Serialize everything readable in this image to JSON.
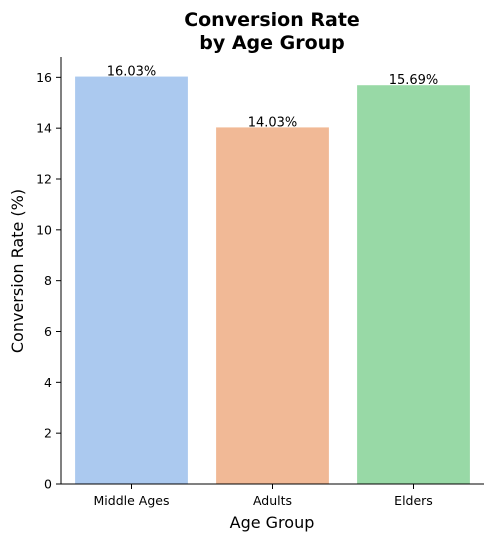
{
  "chart_data": {
    "type": "bar",
    "title_line1": "Conversion Rate",
    "title_line2": "by Age Group",
    "xlabel": "Age Group",
    "ylabel": "Conversion Rate (%)",
    "categories": [
      "Middle Ages",
      "Adults",
      "Elders"
    ],
    "values": [
      16.03,
      14.03,
      15.69
    ],
    "data_labels": [
      "16.03%",
      "14.03%",
      "15.69%"
    ],
    "colors": [
      "#abc9ef",
      "#f1b996",
      "#98d9a6"
    ],
    "ylim": [
      0,
      16.8
    ],
    "yticks": [
      0,
      2,
      4,
      6,
      8,
      10,
      12,
      14,
      16
    ],
    "grid": false,
    "legend": "none"
  }
}
